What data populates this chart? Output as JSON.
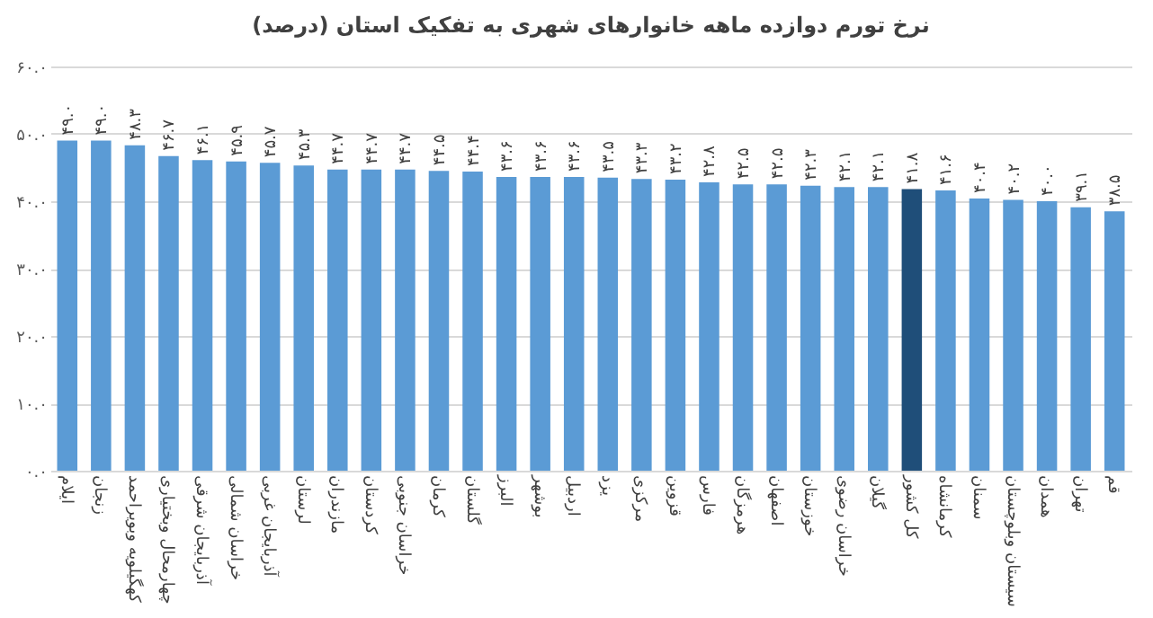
{
  "chart_data": {
    "type": "bar",
    "title": "نرخ تورم دوازده ماهه خانوارهای شهری به تفکیک استان (درصد)",
    "categories": [
      "ایلام",
      "زنجان",
      "کهگیلویه وبویراحمد",
      "چهارمحال وبختیاری",
      "آذربایجان شرقی",
      "خراسان شمالی",
      "آذربایجان غربی",
      "لرستان",
      "مازندران",
      "کردستان",
      "خراسان جنوبی",
      "کرمان",
      "گلستان",
      "البرز",
      "بوشهر",
      "اردبیل",
      "یزد",
      "مرکزی",
      "قزوین",
      "فارس",
      "هرمزگان",
      "اصفهان",
      "خوزستان",
      "خراسان رضوی",
      "گیلان",
      "کل کشور",
      "کرمانشاه",
      "سمنان",
      "سیستان وبلوچستان",
      "همدان",
      "تهران",
      "قم"
    ],
    "values": [
      49.0,
      49.0,
      48.3,
      46.7,
      46.1,
      45.9,
      45.7,
      45.3,
      44.7,
      44.7,
      44.7,
      44.5,
      44.4,
      43.6,
      43.6,
      43.6,
      43.5,
      43.3,
      43.2,
      42.8,
      42.5,
      42.5,
      42.3,
      42.1,
      42.1,
      41.8,
      41.6,
      40.4,
      40.2,
      40.0,
      39.1,
      38.5
    ],
    "value_labels": [
      "۴۹.۰",
      "۴۹.۰",
      "۴۸.۳",
      "۴۶.۷",
      "۴۶.۱",
      "۴۵.۹",
      "۴۵.۷",
      "۴۵.۳",
      "۴۴.۷",
      "۴۴.۷",
      "۴۴.۷",
      "۴۴.۵",
      "۴۴.۴",
      "۴۳.۶",
      "۴۳.۶",
      "۴۳.۶",
      "۴۳.۵",
      "۴۳.۳",
      "۴۳.۲",
      "۴۲.۸",
      "۴۲.۵",
      "۴۲.۵",
      "۴۲.۳",
      "۴۲.۱",
      "۴۲.۱",
      "۴۱.۸",
      "۴۱.۶",
      "۴۰.۴",
      "۴۰.۲",
      "۴۰.۰",
      "۳۹.۱",
      "۳۸.۵"
    ],
    "colors": [
      "#5b9bd5",
      "#5b9bd5",
      "#5b9bd5",
      "#5b9bd5",
      "#5b9bd5",
      "#5b9bd5",
      "#5b9bd5",
      "#5b9bd5",
      "#5b9bd5",
      "#5b9bd5",
      "#5b9bd5",
      "#5b9bd5",
      "#5b9bd5",
      "#5b9bd5",
      "#5b9bd5",
      "#5b9bd5",
      "#5b9bd5",
      "#5b9bd5",
      "#5b9bd5",
      "#5b9bd5",
      "#5b9bd5",
      "#5b9bd5",
      "#5b9bd5",
      "#5b9bd5",
      "#5b9bd5",
      "#1f4e79",
      "#5b9bd5",
      "#5b9bd5",
      "#5b9bd5",
      "#5b9bd5",
      "#5b9bd5",
      "#5b9bd5"
    ],
    "ylim": [
      0,
      60
    ],
    "yticks": [
      {
        "value": 0,
        "label": "۰.۰"
      },
      {
        "value": 10,
        "label": "۱۰.۰"
      },
      {
        "value": 20,
        "label": "۲۰.۰"
      },
      {
        "value": 30,
        "label": "۳۰.۰"
      },
      {
        "value": 40,
        "label": "۴۰.۰"
      },
      {
        "value": 50,
        "label": "۵۰.۰"
      },
      {
        "value": 60,
        "label": "۶۰.۰"
      }
    ],
    "grid": "y"
  }
}
